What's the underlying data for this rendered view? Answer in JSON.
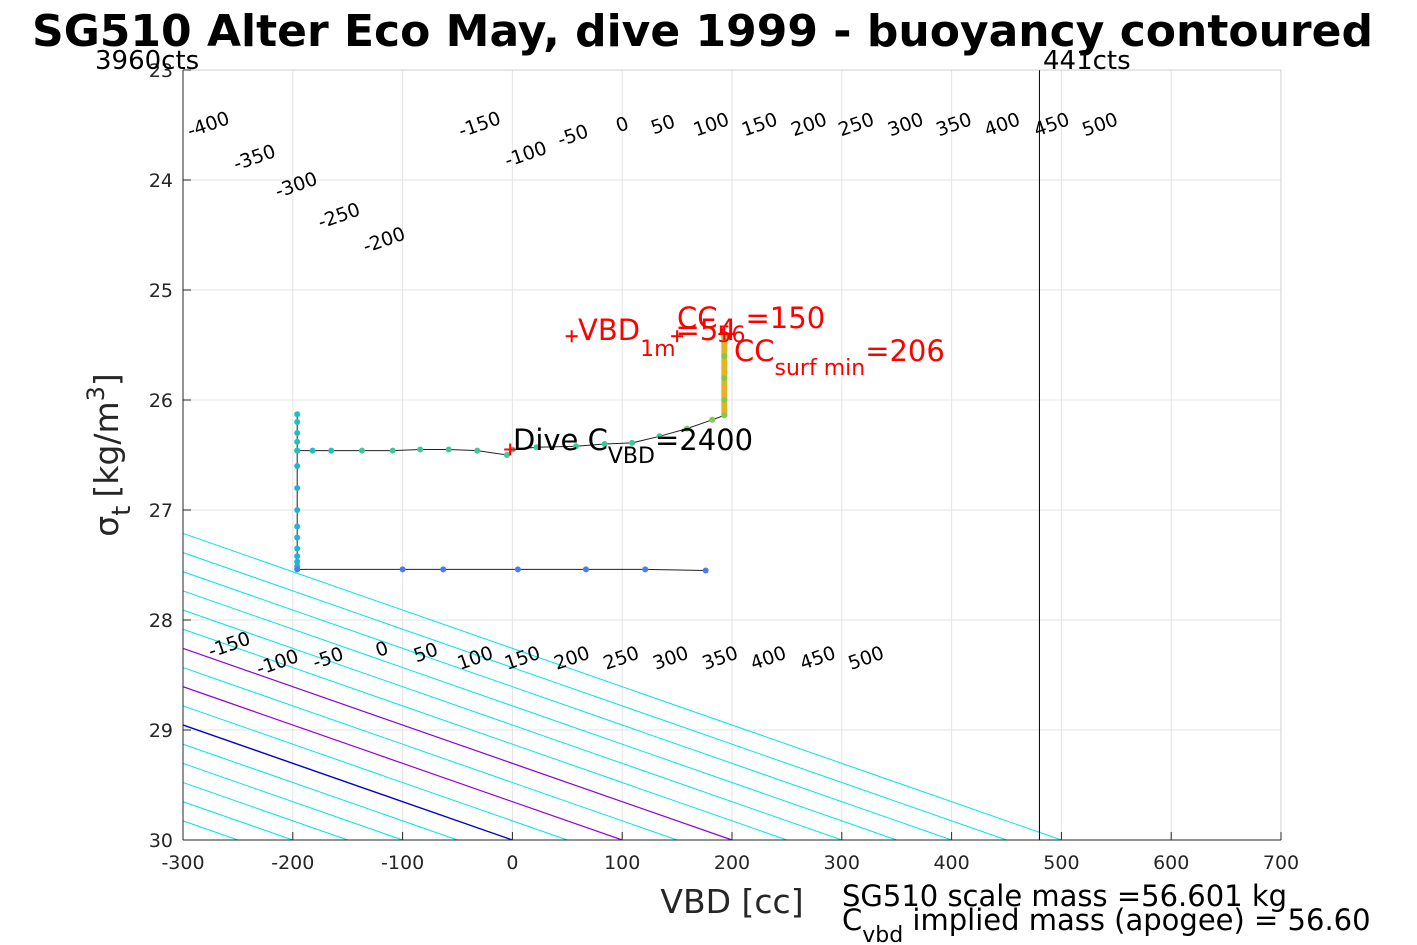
{
  "chart_data": {
    "type": "scatter",
    "title": "SG510 Alter Eco May, dive 1999 - buoyancy contoured",
    "xlabel": "VBD [cc]",
    "ylabel_main": "σ",
    "ylabel_sub": "t",
    "ylabel_units": "[kg/m",
    "ylabel_sup": "3",
    "ylabel_close": "]",
    "xlim": [
      -300,
      700
    ],
    "ylim": [
      23,
      30
    ],
    "y_reversed": true,
    "grid": true,
    "xticks": [
      -300,
      -200,
      -100,
      0,
      100,
      200,
      300,
      400,
      500,
      600,
      700
    ],
    "yticks": [
      23,
      24,
      25,
      26,
      27,
      28,
      29,
      30
    ],
    "count_labels": {
      "left": "3960cts",
      "right": "441cts"
    },
    "count_line_x": 480,
    "contour_slope_cc_per_sigma": 287,
    "contours": {
      "cyan_color": "#00e5e5",
      "blue_color": "#0000cc",
      "magenta_color": "#9900dd",
      "cyan_origins": [
        -400,
        -350,
        -300,
        -250,
        -200,
        -150,
        -100,
        -50,
        50,
        150,
        200,
        250,
        300,
        350,
        400,
        450,
        500
      ],
      "blue_origin": 0,
      "magenta_origins": [
        100,
        200
      ],
      "top_labels": [
        {
          "text": "-400",
          "x": -275,
          "y": 23.55
        },
        {
          "text": "-350",
          "x": -233,
          "y": 23.85
        },
        {
          "text": "-300",
          "x": -195,
          "y": 24.1
        },
        {
          "text": "-250",
          "x": -156,
          "y": 24.38
        },
        {
          "text": "-200",
          "x": -115,
          "y": 24.6
        },
        {
          "text": "-150",
          "x": -28,
          "y": 23.55
        },
        {
          "text": "-100",
          "x": 14,
          "y": 23.82
        },
        {
          "text": "-50",
          "x": 57,
          "y": 23.65
        },
        {
          "text": "0",
          "x": 102,
          "y": 23.55
        },
        {
          "text": "50",
          "x": 139,
          "y": 23.55
        },
        {
          "text": "100",
          "x": 183,
          "y": 23.55
        },
        {
          "text": "150",
          "x": 227,
          "y": 23.55
        },
        {
          "text": "200",
          "x": 272,
          "y": 23.55
        },
        {
          "text": "250",
          "x": 315,
          "y": 23.55
        },
        {
          "text": "300",
          "x": 360,
          "y": 23.55
        },
        {
          "text": "350",
          "x": 404,
          "y": 23.55
        },
        {
          "text": "400",
          "x": 448,
          "y": 23.55
        },
        {
          "text": "450",
          "x": 493,
          "y": 23.55
        },
        {
          "text": "500",
          "x": 537,
          "y": 23.55
        }
      ],
      "bottom_labels": [
        {
          "text": "-150",
          "x": -256,
          "y": 28.28
        },
        {
          "text": "-100",
          "x": -212,
          "y": 28.44
        },
        {
          "text": "-50",
          "x": -166,
          "y": 28.4
        },
        {
          "text": "0",
          "x": -117,
          "y": 28.32
        },
        {
          "text": "50",
          "x": -77,
          "y": 28.35
        },
        {
          "text": "100",
          "x": -32,
          "y": 28.4
        },
        {
          "text": "150",
          "x": 11,
          "y": 28.4
        },
        {
          "text": "200",
          "x": 56,
          "y": 28.4
        },
        {
          "text": "250",
          "x": 101,
          "y": 28.4
        },
        {
          "text": "300",
          "x": 146,
          "y": 28.4
        },
        {
          "text": "350",
          "x": 191,
          "y": 28.4
        },
        {
          "text": "400",
          "x": 235,
          "y": 28.4
        },
        {
          "text": "450",
          "x": 280,
          "y": 28.4
        },
        {
          "text": "500",
          "x": 324,
          "y": 28.4
        }
      ]
    },
    "trajectory": [
      {
        "x": -196,
        "y": 26.13
      },
      {
        "x": -196,
        "y": 26.2
      },
      {
        "x": -196,
        "y": 26.3
      },
      {
        "x": -196,
        "y": 26.38
      },
      {
        "x": -196,
        "y": 26.46
      },
      {
        "x": -182,
        "y": 26.46
      },
      {
        "x": -165,
        "y": 26.46
      },
      {
        "x": -137,
        "y": 26.46
      },
      {
        "x": -109,
        "y": 26.46
      },
      {
        "x": -84,
        "y": 26.45
      },
      {
        "x": -58,
        "y": 26.45
      },
      {
        "x": -32,
        "y": 26.46
      },
      {
        "x": -5,
        "y": 26.5
      },
      {
        "x": 0,
        "y": 26.45
      },
      {
        "x": 22,
        "y": 26.43
      },
      {
        "x": 58,
        "y": 26.42
      },
      {
        "x": 84,
        "y": 26.4
      },
      {
        "x": 109,
        "y": 26.39
      },
      {
        "x": 134,
        "y": 26.33
      },
      {
        "x": 159,
        "y": 26.26
      },
      {
        "x": 182,
        "y": 26.18
      },
      {
        "x": 193,
        "y": 26.14
      },
      {
        "x": 193,
        "y": 26.0
      },
      {
        "x": 193,
        "y": 25.8
      },
      {
        "x": 193,
        "y": 25.6
      },
      {
        "x": 193,
        "y": 25.42
      }
    ],
    "descent_trajectory": [
      {
        "x": -196,
        "y": 26.46
      },
      {
        "x": -196,
        "y": 26.6
      },
      {
        "x": -196,
        "y": 26.8
      },
      {
        "x": -196,
        "y": 27.0
      },
      {
        "x": -196,
        "y": 27.15
      },
      {
        "x": -196,
        "y": 27.25
      },
      {
        "x": -196,
        "y": 27.35
      },
      {
        "x": -196,
        "y": 27.42
      },
      {
        "x": -196,
        "y": 27.47
      },
      {
        "x": -196,
        "y": 27.51
      },
      {
        "x": -196,
        "y": 27.54
      },
      {
        "x": -100,
        "y": 27.54
      },
      {
        "x": -63,
        "y": 27.54
      },
      {
        "x": 5,
        "y": 27.54
      },
      {
        "x": 67,
        "y": 27.54
      },
      {
        "x": 121,
        "y": 27.54
      },
      {
        "x": 176,
        "y": 27.55
      }
    ],
    "surface_segment": {
      "x": 193,
      "y_from": 26.15,
      "y_to": 25.42
    },
    "markers": [
      {
        "x": -2,
        "y": 26.45
      },
      {
        "x": 54,
        "y": 25.42
      },
      {
        "x": 150,
        "y": 25.42
      },
      {
        "x": 193,
        "y": 25.4
      }
    ],
    "annotations": {
      "vbd1m": {
        "main": "VBD",
        "sub": "1m",
        "rest": "=54",
        "color": "#ff0000"
      },
      "cc56": {
        "main": "CC",
        "sub": "56",
        "rest": "=150",
        "color": "#ff0000"
      },
      "ccsurf": {
        "main": "CC",
        "sub": "surf min",
        "rest": "=206",
        "color": "#ff0000"
      },
      "divecvbd": {
        "main": "Dive C",
        "sub": "VBD",
        "rest": "=2400",
        "color": "#000000"
      }
    },
    "footer": {
      "line1": "SG510 scale mass =56.601 kg",
      "line2_main": "C",
      "line2_sub": "vbd",
      "line2_rest": " implied mass (apogee) = 56.60"
    }
  }
}
